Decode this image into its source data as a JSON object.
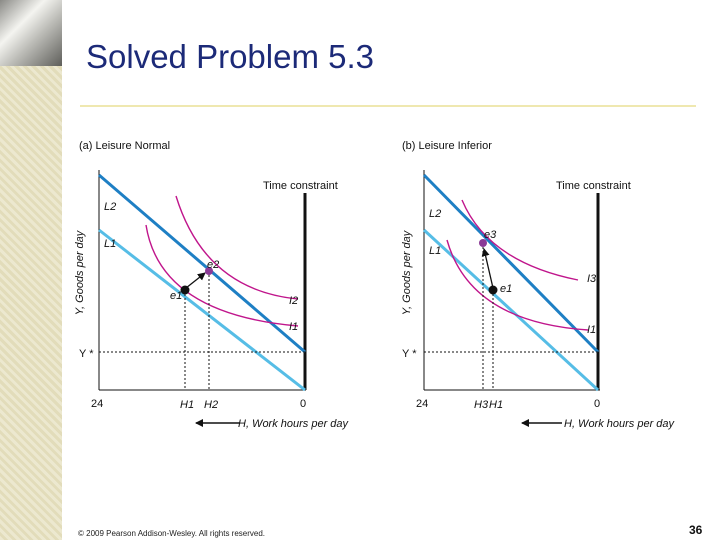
{
  "slide": {
    "title": "Solved Problem 5.3",
    "footer": "© 2009 Pearson Addison-Wesley. All rights reserved.",
    "page_number": "36"
  },
  "panels": [
    {
      "heading": "(a) Leisure Normal",
      "y_axis_label": "Y, Goods per day",
      "x_axis_label": "H, Work hours per day",
      "constraint_label": "Time constraint",
      "x_left": "24",
      "x_right": "0",
      "y_star": "Y *",
      "budget_labels": [
        "L2",
        "L1"
      ],
      "indifference_labels": [
        "I2",
        "I1"
      ],
      "point_labels": [
        "e2",
        "e1"
      ],
      "hour_labels": [
        "H1",
        "H2"
      ]
    },
    {
      "heading": "(b) Leisure Inferior",
      "y_axis_label": "Y, Goods per day",
      "x_axis_label": "H, Work hours per day",
      "constraint_label": "Time constraint",
      "x_left": "24",
      "x_right": "0",
      "y_star": "Y *",
      "budget_labels": [
        "L2",
        "L1"
      ],
      "indifference_labels": [
        "I3",
        "I1"
      ],
      "point_labels": [
        "e3",
        "e1"
      ],
      "hour_labels": [
        "H3",
        "H1"
      ]
    }
  ],
  "colors": {
    "title": "#1c2a78",
    "budget_dark": "#1e7fc4",
    "budget_light": "#56bde6",
    "indifference": "#c0168c",
    "point_new": "#8b3a96"
  }
}
